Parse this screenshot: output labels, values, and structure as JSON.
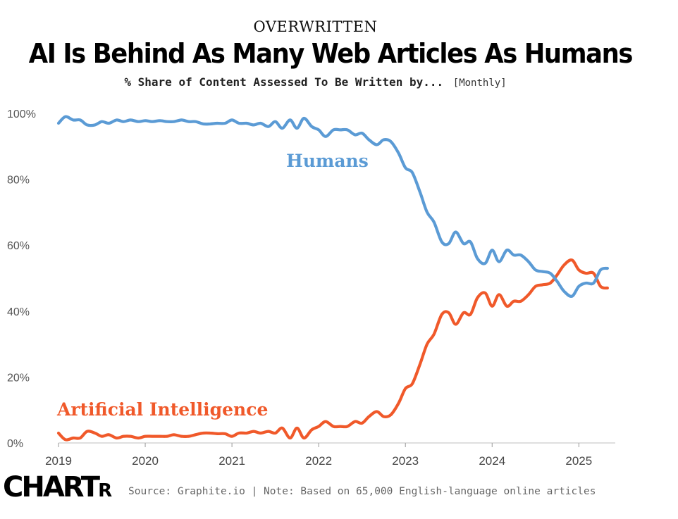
{
  "header": {
    "kicker": "OVERWRITTEN",
    "title": "AI Is Behind As Many Web Articles As Humans",
    "subtitle": "% Share of Content Assessed To Be Written by...",
    "frequency": "[Monthly]"
  },
  "footer": {
    "logo_main": "CHART",
    "logo_small": "R",
    "source": "Source: Graphite.io | Note: Based on 65,000 English-language online articles"
  },
  "chart_data": {
    "type": "line",
    "title": "AI Is Behind As Many Web Articles As Humans",
    "xlabel": "",
    "ylabel": "% Share of Content",
    "xlim": [
      2019.0,
      2025.42
    ],
    "ylim": [
      0,
      100
    ],
    "x_ticks": [
      2019,
      2020,
      2021,
      2022,
      2023,
      2024,
      2025
    ],
    "x_tick_labels": [
      "2019",
      "2020",
      "2021",
      "2022",
      "2023",
      "2024",
      "2025"
    ],
    "y_ticks": [
      0,
      20,
      40,
      60,
      80,
      100
    ],
    "y_tick_labels": [
      "0%",
      "20%",
      "40%",
      "60%",
      "80%",
      "100%"
    ],
    "grid": false,
    "series": [
      {
        "name": "Humans",
        "label": "Humans",
        "color": "#5b9bd5",
        "points": [
          [
            2019.0,
            97
          ],
          [
            2019.08,
            99
          ],
          [
            2019.17,
            98
          ],
          [
            2019.25,
            98
          ],
          [
            2019.33,
            96.5
          ],
          [
            2019.42,
            96.5
          ],
          [
            2019.5,
            97.5
          ],
          [
            2019.58,
            97
          ],
          [
            2019.67,
            98
          ],
          [
            2019.75,
            97.5
          ],
          [
            2019.83,
            98
          ],
          [
            2019.92,
            97.5
          ],
          [
            2020.0,
            97.8
          ],
          [
            2020.08,
            97.5
          ],
          [
            2020.17,
            97.8
          ],
          [
            2020.25,
            97.5
          ],
          [
            2020.33,
            97.5
          ],
          [
            2020.42,
            98
          ],
          [
            2020.5,
            97.5
          ],
          [
            2020.58,
            97.5
          ],
          [
            2020.67,
            96.8
          ],
          [
            2020.75,
            96.8
          ],
          [
            2020.83,
            97
          ],
          [
            2020.92,
            97
          ],
          [
            2021.0,
            98
          ],
          [
            2021.08,
            97
          ],
          [
            2021.17,
            97
          ],
          [
            2021.25,
            96.5
          ],
          [
            2021.33,
            97
          ],
          [
            2021.42,
            96
          ],
          [
            2021.5,
            97.5
          ],
          [
            2021.58,
            95.5
          ],
          [
            2021.67,
            98
          ],
          [
            2021.75,
            95.5
          ],
          [
            2021.83,
            98.5
          ],
          [
            2021.92,
            96
          ],
          [
            2022.0,
            95
          ],
          [
            2022.08,
            93
          ],
          [
            2022.17,
            95
          ],
          [
            2022.25,
            95
          ],
          [
            2022.33,
            95
          ],
          [
            2022.42,
            93.5
          ],
          [
            2022.5,
            94
          ],
          [
            2022.58,
            92
          ],
          [
            2022.67,
            90.5
          ],
          [
            2022.75,
            92
          ],
          [
            2022.83,
            91.5
          ],
          [
            2022.92,
            88
          ],
          [
            2023.0,
            83.5
          ],
          [
            2023.08,
            82
          ],
          [
            2023.17,
            76
          ],
          [
            2023.25,
            70
          ],
          [
            2023.33,
            67
          ],
          [
            2023.42,
            61
          ],
          [
            2023.5,
            60.5
          ],
          [
            2023.58,
            64
          ],
          [
            2023.67,
            60.5
          ],
          [
            2023.75,
            61
          ],
          [
            2023.83,
            56
          ],
          [
            2023.92,
            54.5
          ],
          [
            2024.0,
            58.5
          ],
          [
            2024.08,
            55
          ],
          [
            2024.17,
            58.5
          ],
          [
            2024.25,
            57
          ],
          [
            2024.33,
            57
          ],
          [
            2024.42,
            55
          ],
          [
            2024.5,
            52.5
          ],
          [
            2024.58,
            52
          ],
          [
            2024.67,
            51.5
          ],
          [
            2024.75,
            49
          ],
          [
            2024.83,
            46
          ],
          [
            2024.92,
            44.5
          ],
          [
            2025.0,
            47.5
          ],
          [
            2025.08,
            48.5
          ],
          [
            2025.17,
            48.5
          ],
          [
            2025.25,
            52.5
          ],
          [
            2025.33,
            53
          ]
        ]
      },
      {
        "name": "Artificial Intelligence",
        "label": "Artificial Intelligence",
        "color": "#f0592a",
        "points": [
          [
            2019.0,
            3
          ],
          [
            2019.08,
            1
          ],
          [
            2019.17,
            1.5
          ],
          [
            2019.25,
            1.5
          ],
          [
            2019.33,
            3.5
          ],
          [
            2019.42,
            3
          ],
          [
            2019.5,
            2
          ],
          [
            2019.58,
            2.5
          ],
          [
            2019.67,
            1.5
          ],
          [
            2019.75,
            2
          ],
          [
            2019.83,
            2
          ],
          [
            2019.92,
            1.5
          ],
          [
            2020.0,
            2
          ],
          [
            2020.08,
            2
          ],
          [
            2020.17,
            2
          ],
          [
            2020.25,
            2
          ],
          [
            2020.33,
            2.5
          ],
          [
            2020.42,
            2
          ],
          [
            2020.5,
            2
          ],
          [
            2020.58,
            2.5
          ],
          [
            2020.67,
            3
          ],
          [
            2020.75,
            3
          ],
          [
            2020.83,
            2.8
          ],
          [
            2020.92,
            2.8
          ],
          [
            2021.0,
            2
          ],
          [
            2021.08,
            3
          ],
          [
            2021.17,
            3
          ],
          [
            2021.25,
            3.5
          ],
          [
            2021.33,
            3
          ],
          [
            2021.42,
            3.5
          ],
          [
            2021.5,
            3
          ],
          [
            2021.58,
            4.5
          ],
          [
            2021.67,
            1.5
          ],
          [
            2021.75,
            4.5
          ],
          [
            2021.83,
            1.5
          ],
          [
            2021.92,
            4
          ],
          [
            2022.0,
            5
          ],
          [
            2022.08,
            6.5
          ],
          [
            2022.17,
            5
          ],
          [
            2022.25,
            5
          ],
          [
            2022.33,
            5
          ],
          [
            2022.42,
            6.5
          ],
          [
            2022.5,
            6
          ],
          [
            2022.58,
            8
          ],
          [
            2022.67,
            9.5
          ],
          [
            2022.75,
            8
          ],
          [
            2022.83,
            8.5
          ],
          [
            2022.92,
            12
          ],
          [
            2023.0,
            16.5
          ],
          [
            2023.08,
            18
          ],
          [
            2023.17,
            24
          ],
          [
            2023.25,
            30
          ],
          [
            2023.33,
            33
          ],
          [
            2023.42,
            39
          ],
          [
            2023.5,
            39.5
          ],
          [
            2023.58,
            36
          ],
          [
            2023.67,
            39.5
          ],
          [
            2023.75,
            39
          ],
          [
            2023.83,
            44
          ],
          [
            2023.92,
            45.5
          ],
          [
            2024.0,
            41.5
          ],
          [
            2024.08,
            45
          ],
          [
            2024.17,
            41.5
          ],
          [
            2024.25,
            43
          ],
          [
            2024.33,
            43
          ],
          [
            2024.42,
            45
          ],
          [
            2024.5,
            47.5
          ],
          [
            2024.58,
            48
          ],
          [
            2024.67,
            48.5
          ],
          [
            2024.75,
            51
          ],
          [
            2024.83,
            54
          ],
          [
            2024.92,
            55.5
          ],
          [
            2025.0,
            52.5
          ],
          [
            2025.08,
            51.5
          ],
          [
            2025.17,
            51.5
          ],
          [
            2025.25,
            47.5
          ],
          [
            2025.33,
            47
          ]
        ]
      }
    ],
    "annotations": [
      {
        "text": "Humans",
        "series": "Humans",
        "x": 2022.1,
        "y": 85.5
      },
      {
        "text": "Artificial Intelligence",
        "series": "Artificial Intelligence",
        "x": 2020.2,
        "y": 10
      }
    ]
  }
}
